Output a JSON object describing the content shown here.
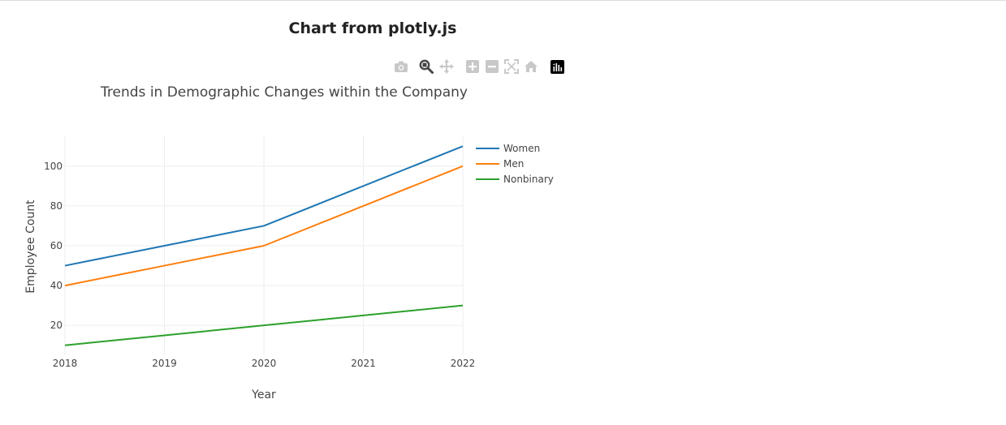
{
  "page": {
    "heading": "Chart from plotly.js"
  },
  "modebar": {
    "buttons": [
      {
        "name": "camera-icon"
      },
      {
        "name": "zoom-icon"
      },
      {
        "name": "pan-icon"
      },
      {
        "name": "zoom-in-icon"
      },
      {
        "name": "zoom-out-icon"
      },
      {
        "name": "autoscale-icon"
      },
      {
        "name": "home-icon"
      },
      {
        "name": "plotly-logo-icon"
      }
    ]
  },
  "chart_data": {
    "type": "line",
    "title": "Trends in Demographic Changes within the Company",
    "xlabel": "Year",
    "ylabel": "Employee Count",
    "x": [
      2018,
      2019,
      2020,
      2021,
      2022
    ],
    "xlim": [
      2018,
      2022
    ],
    "ylim": [
      5,
      115
    ],
    "yticks": [
      20,
      40,
      60,
      80,
      100
    ],
    "grid": true,
    "legend_position": "top-right",
    "series": [
      {
        "name": "Women",
        "values": [
          50,
          60,
          70,
          90,
          110
        ],
        "color": "#1f77b4"
      },
      {
        "name": "Men",
        "values": [
          40,
          50,
          60,
          80,
          100
        ],
        "color": "#ff7f0e"
      },
      {
        "name": "Nonbinary",
        "values": [
          10,
          15,
          20,
          25,
          30
        ],
        "color": "#2ca02c"
      }
    ]
  }
}
